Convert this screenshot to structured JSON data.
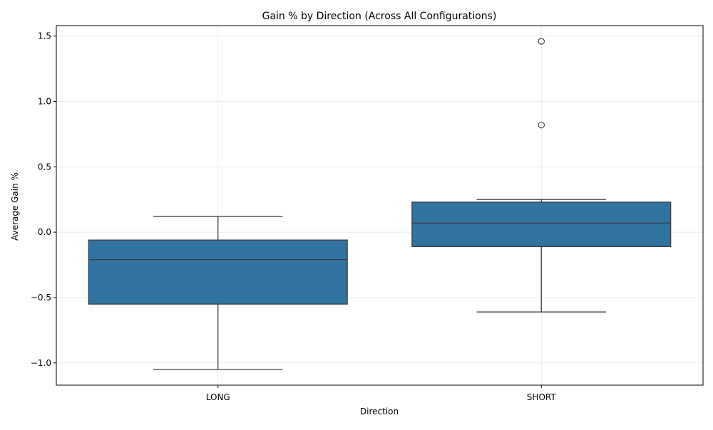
{
  "chart_data": {
    "type": "box",
    "title": "Gain % by Direction (Across All Configurations)",
    "xlabel": "Direction",
    "ylabel": "Average Gain %",
    "categories": [
      "LONG",
      "SHORT"
    ],
    "ylim": [
      -1.17,
      1.58
    ],
    "yticks": [
      -1.0,
      -0.5,
      0.0,
      0.5,
      1.0,
      1.5
    ],
    "ytick_labels": [
      "−1.0",
      "−0.5",
      "0.0",
      "0.5",
      "1.0",
      "1.5"
    ],
    "grid": true,
    "boxes": [
      {
        "category": "LONG",
        "whisker_low": -1.05,
        "q1": -0.55,
        "median": -0.21,
        "q3": -0.06,
        "whisker_high": 0.12,
        "outliers": []
      },
      {
        "category": "SHORT",
        "whisker_low": -0.61,
        "q1": -0.11,
        "median": 0.07,
        "q3": 0.23,
        "whisker_high": 0.25,
        "outliers": [
          1.46,
          0.82
        ]
      }
    ],
    "colors": {
      "box_fill": "#3274a1",
      "line": "#3d3d3d",
      "grid": "#e6e6e6",
      "axis": "#000000"
    }
  }
}
